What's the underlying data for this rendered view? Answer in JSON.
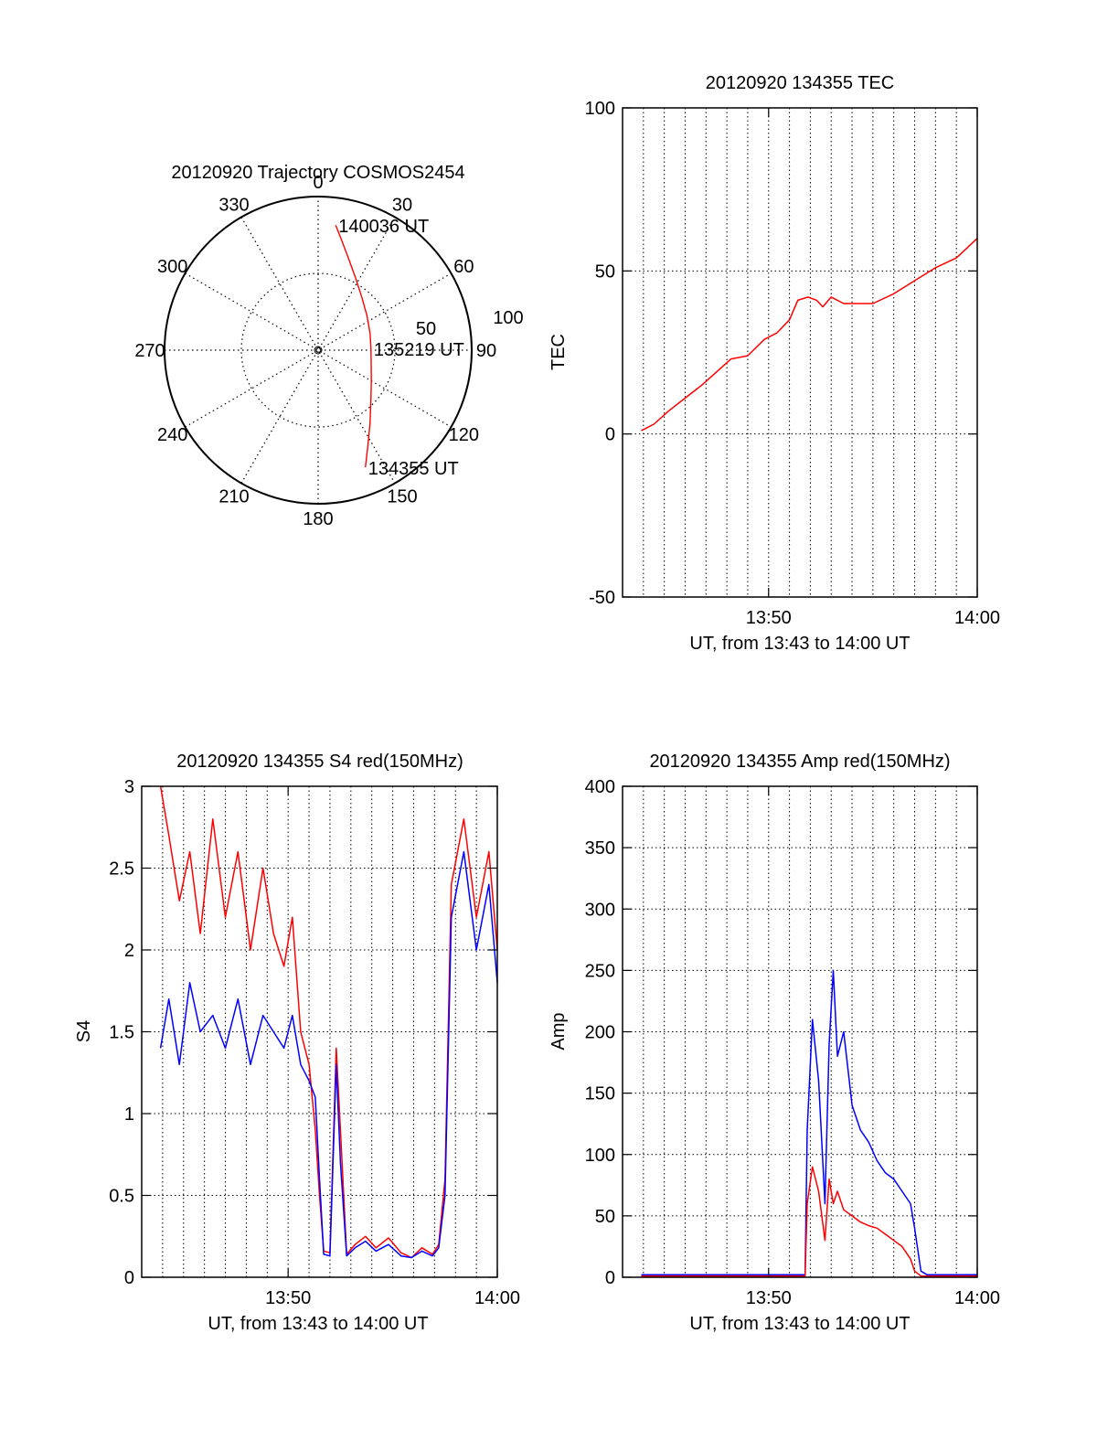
{
  "colors": {
    "red": "#ff0000",
    "blue": "#0000ff",
    "axis": "#000000"
  },
  "chart_data": [
    {
      "type": "polar-trajectory",
      "title": "20120920 Trajectory COSMOS2454",
      "azimuth_ticks": [
        "0",
        "30",
        "60",
        "90",
        "120",
        "150",
        "180",
        "210",
        "240",
        "270",
        "300",
        "330"
      ],
      "radial_ticks": [
        "50",
        "100"
      ],
      "points": [
        {
          "az": 8,
          "el": 16
        },
        {
          "az": 12,
          "el": 24
        },
        {
          "az": 18,
          "el": 33
        },
        {
          "az": 27,
          "el": 42
        },
        {
          "az": 40,
          "el": 50
        },
        {
          "az": 55,
          "el": 55
        },
        {
          "az": 72,
          "el": 58
        },
        {
          "az": 88,
          "el": 59
        },
        {
          "az": 104,
          "el": 58
        },
        {
          "az": 120,
          "el": 54
        },
        {
          "az": 134,
          "el": 47
        },
        {
          "az": 145,
          "el": 37
        },
        {
          "az": 153,
          "el": 26
        },
        {
          "az": 158,
          "el": 16
        }
      ],
      "annotations": [
        {
          "text": "140036 UT",
          "az": 8,
          "el": 16
        },
        {
          "text": "135219 UT",
          "az": 88,
          "el": 59
        },
        {
          "text": "134355 UT",
          "az": 158,
          "el": 16
        }
      ]
    },
    {
      "type": "line",
      "title": "20120920 134355 TEC",
      "xlabel": "UT, from 13:43 to 14:00 UT",
      "ylabel": "TEC",
      "xlim": [
        43.0,
        60.0
      ],
      "ylim": [
        -50,
        100
      ],
      "xticks": [
        {
          "v": 50,
          "label": "13:50"
        },
        {
          "v": 60,
          "label": "14:00"
        }
      ],
      "yticks": [
        "-50",
        "0",
        "50",
        "100"
      ],
      "series": [
        {
          "color": "red",
          "x": [
            43.9,
            44.5,
            45.2,
            46.0,
            46.8,
            47.5,
            48.2,
            49.0,
            49.8,
            50.4,
            51.0,
            51.4,
            51.9,
            52.3,
            52.6,
            53.0,
            53.6,
            54.2,
            55.0,
            56.0,
            57.0,
            58.0,
            59.0,
            59.5,
            60.0
          ],
          "y": [
            1,
            3,
            7,
            11,
            15,
            19,
            23,
            24,
            29,
            31,
            35,
            41,
            42,
            41,
            39,
            42,
            40,
            40,
            40,
            43,
            47,
            51,
            54,
            57,
            60
          ]
        }
      ]
    },
    {
      "type": "line",
      "title": "20120920 134355 S4 red(150MHz)",
      "xlabel": "UT, from 13:43 to 14:00 UT",
      "ylabel": "S4",
      "xlim": [
        43.0,
        60.0
      ],
      "ylim": [
        0,
        3
      ],
      "xticks": [
        {
          "v": 50,
          "label": "13:50"
        },
        {
          "v": 60,
          "label": "14:00"
        }
      ],
      "yticks": [
        "0",
        "0.5",
        "1",
        "1.5",
        "2",
        "2.5",
        "3"
      ],
      "series": [
        {
          "color": "red",
          "x": [
            43.9,
            44.3,
            44.8,
            45.3,
            45.8,
            46.4,
            47.0,
            47.6,
            48.2,
            48.8,
            49.3,
            49.8,
            50.2,
            50.6,
            51.0,
            51.3,
            51.5,
            51.7,
            52.0,
            52.3,
            52.5,
            52.8,
            53.2,
            53.7,
            54.2,
            54.8,
            55.4,
            55.9,
            56.4,
            56.9,
            57.2,
            57.5,
            57.8,
            58.4,
            59.0,
            59.6,
            60.0
          ],
          "y": [
            3.0,
            2.7,
            2.3,
            2.6,
            2.1,
            2.8,
            2.2,
            2.6,
            2.0,
            2.5,
            2.1,
            1.9,
            2.2,
            1.5,
            1.3,
            0.9,
            0.5,
            0.16,
            0.15,
            1.4,
            0.9,
            0.14,
            0.2,
            0.25,
            0.18,
            0.24,
            0.15,
            0.12,
            0.18,
            0.14,
            0.2,
            0.6,
            2.4,
            2.8,
            2.2,
            2.6,
            2.0
          ]
        },
        {
          "color": "blue",
          "x": [
            43.9,
            44.3,
            44.8,
            45.3,
            45.8,
            46.4,
            47.0,
            47.6,
            48.2,
            48.8,
            49.3,
            49.8,
            50.2,
            50.6,
            51.0,
            51.3,
            51.5,
            51.7,
            52.0,
            52.3,
            52.5,
            52.8,
            53.2,
            53.7,
            54.2,
            54.8,
            55.4,
            55.9,
            56.4,
            56.9,
            57.2,
            57.5,
            57.8,
            58.4,
            59.0,
            59.6,
            60.0
          ],
          "y": [
            1.4,
            1.7,
            1.3,
            1.8,
            1.5,
            1.6,
            1.4,
            1.7,
            1.3,
            1.6,
            1.5,
            1.4,
            1.6,
            1.3,
            1.2,
            1.1,
            0.6,
            0.14,
            0.13,
            1.3,
            0.7,
            0.13,
            0.18,
            0.22,
            0.16,
            0.2,
            0.13,
            0.12,
            0.16,
            0.13,
            0.18,
            0.5,
            2.2,
            2.6,
            2.0,
            2.4,
            1.8
          ]
        }
      ]
    },
    {
      "type": "line",
      "title": "20120920 134355 Amp red(150MHz)",
      "xlabel": "UT, from 13:43 to 14:00 UT",
      "ylabel": "Amp",
      "xlim": [
        43.0,
        60.0
      ],
      "ylim": [
        0,
        400
      ],
      "xticks": [
        {
          "v": 50,
          "label": "13:50"
        },
        {
          "v": 60,
          "label": "14:00"
        }
      ],
      "yticks": [
        "0",
        "50",
        "100",
        "150",
        "200",
        "250",
        "300",
        "350",
        "400"
      ],
      "series": [
        {
          "color": "blue",
          "x": [
            43.9,
            45.0,
            47.0,
            49.0,
            50.5,
            51.5,
            51.75,
            51.85,
            52.1,
            52.4,
            52.7,
            52.9,
            53.1,
            53.3,
            53.6,
            54.0,
            54.4,
            54.8,
            55.2,
            55.6,
            56.0,
            56.4,
            56.8,
            57.0,
            57.3,
            57.6,
            58.2,
            59.0,
            60.0
          ],
          "y": [
            2,
            2,
            2,
            2,
            2,
            2,
            2,
            120,
            210,
            160,
            60,
            190,
            250,
            180,
            200,
            140,
            120,
            110,
            95,
            85,
            80,
            70,
            60,
            40,
            5,
            2,
            2,
            2,
            2
          ]
        },
        {
          "color": "red",
          "x": [
            43.9,
            45.0,
            47.0,
            49.0,
            50.5,
            51.5,
            51.75,
            51.85,
            52.1,
            52.4,
            52.7,
            52.9,
            53.1,
            53.3,
            53.6,
            54.0,
            54.4,
            54.8,
            55.2,
            55.6,
            56.0,
            56.4,
            56.8,
            57.0,
            57.3,
            57.6,
            58.2,
            59.0,
            60.0
          ],
          "y": [
            1,
            1,
            1,
            1,
            1,
            1,
            1,
            60,
            90,
            70,
            30,
            80,
            60,
            70,
            55,
            50,
            45,
            42,
            40,
            35,
            30,
            25,
            15,
            5,
            1,
            1,
            1,
            1,
            1
          ]
        }
      ]
    }
  ]
}
